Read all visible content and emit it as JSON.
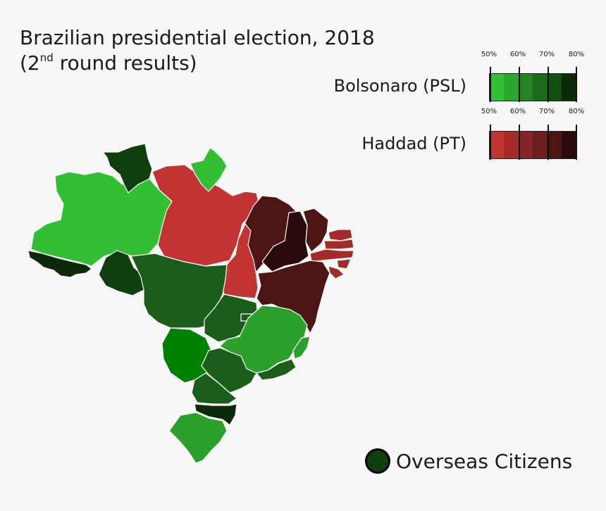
{
  "title": {
    "line1": "Brazilian presidential election, 2018",
    "line2_prefix": "(2",
    "line2_sup": "nd",
    "line2_suffix": " round results)"
  },
  "legend": {
    "ticks": [
      "50%",
      "60%",
      "70%",
      "80%"
    ],
    "bolsonaro": {
      "name": "Bolsonaro (PSL)",
      "colors": [
        "#33bf33",
        "#2ba82b",
        "#238523",
        "#1b6b1b",
        "#124d12",
        "#0a2a0a"
      ]
    },
    "haddad": {
      "name": "Haddad (PT)",
      "colors": [
        "#c23333",
        "#a52b2b",
        "#862525",
        "#6c1d1d",
        "#4e1515",
        "#2a0a0a"
      ]
    }
  },
  "overseas": {
    "label": "Overseas Citizens",
    "color": "#0f3f0f"
  },
  "colors": {
    "green_light": "#33bf33",
    "green_mid": "#2ba02b",
    "green_dark": "#1b5e1b",
    "green_darker": "#0f3f0f",
    "green_darkest": "#0a2a0a",
    "green_ms": "#008000",
    "red_light": "#c23333",
    "red_mid": "#a52b2b",
    "red_dark": "#4e1515",
    "red_darkest": "#2a0a0a"
  }
}
